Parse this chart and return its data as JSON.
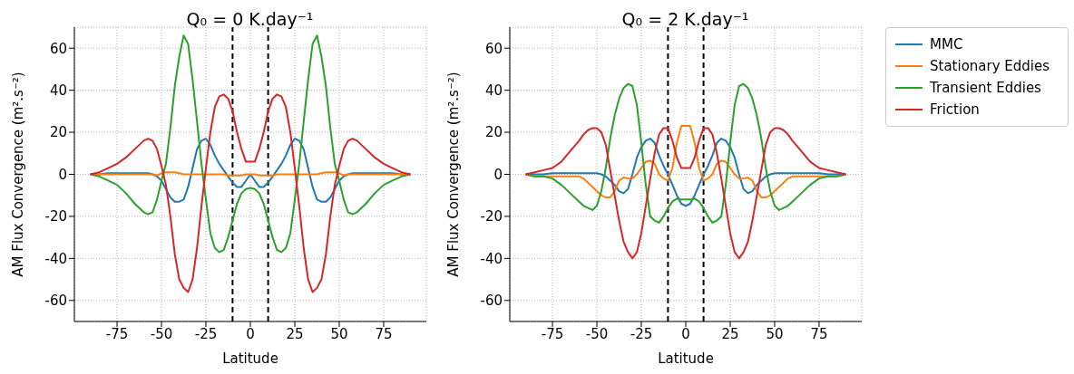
{
  "chart_data": [
    {
      "type": "line",
      "title": "Q₀ = 0 K.day⁻¹",
      "xlabel": "Latitude",
      "ylabel": "AM Flux Convergence (m².s⁻²)",
      "x": [
        -90,
        -85,
        -80,
        -75,
        -70,
        -65,
        -60,
        -57.5,
        -55,
        -52.5,
        -50,
        -47.5,
        -45,
        -42.5,
        -40,
        -37.5,
        -35,
        -32.5,
        -30,
        -27.5,
        -25,
        -22.5,
        -20,
        -17.5,
        -15,
        -12.5,
        -10,
        -7.5,
        -5,
        -2.5,
        0,
        2.5,
        5,
        7.5,
        10,
        12.5,
        15,
        17.5,
        20,
        22.5,
        25,
        27.5,
        30,
        32.5,
        35,
        37.5,
        40,
        42.5,
        45,
        47.5,
        50,
        52.5,
        55,
        57.5,
        60,
        65,
        70,
        75,
        80,
        85,
        90
      ],
      "series": [
        {
          "color": "#1f77b4",
          "values": [
            0,
            0,
            0.5,
            0.5,
            0.5,
            0.5,
            0.5,
            0.5,
            0,
            -1,
            -3,
            -7,
            -11,
            -13,
            -13,
            -12,
            -6,
            3,
            12,
            16,
            17,
            14,
            9,
            5,
            2,
            -1,
            -4,
            -6,
            -6,
            -3,
            0,
            -3,
            -6,
            -6,
            -4,
            -1,
            2,
            5,
            9,
            14,
            17,
            16,
            12,
            3,
            -6,
            -12,
            -13,
            -13,
            -11,
            -7,
            -3,
            -1,
            0,
            0.5,
            0.5,
            0.5,
            0.5,
            0.5,
            0.5,
            0,
            0
          ]
        },
        {
          "color": "#ff7f0e",
          "values": [
            0,
            0,
            0,
            0,
            0,
            0,
            0,
            0,
            0,
            -0.5,
            0.5,
            1,
            1,
            1,
            0.5,
            0,
            0,
            0,
            0,
            0,
            0,
            0,
            0,
            0,
            0,
            -0.5,
            -0.5,
            -0.5,
            -0.5,
            0,
            0,
            0,
            -0.5,
            -0.5,
            -0.5,
            -0.5,
            0,
            0,
            0,
            0,
            0,
            0,
            0,
            0,
            0,
            0,
            0.5,
            1,
            1,
            1,
            0.5,
            -0.5,
            0,
            0,
            0,
            0,
            0,
            0,
            0,
            0,
            0
          ]
        },
        {
          "color": "#2ca02c",
          "values": [
            0,
            -1,
            -3,
            -5,
            -9,
            -14,
            -18,
            -19,
            -18,
            -12,
            -3,
            5,
            22,
            42,
            56,
            66,
            62,
            45,
            25,
            5,
            -12,
            -28,
            -35,
            -37,
            -36,
            -30,
            -22,
            -14,
            -9,
            -7,
            -6.5,
            -7,
            -9,
            -14,
            -22,
            -30,
            -36,
            -37,
            -35,
            -28,
            -12,
            5,
            25,
            45,
            62,
            66,
            56,
            42,
            22,
            5,
            -3,
            -12,
            -18,
            -19,
            -18,
            -14,
            -9,
            -5,
            -3,
            -1,
            0
          ]
        },
        {
          "color": "#d62728",
          "values": [
            0,
            1,
            3,
            5,
            8,
            12,
            16,
            17,
            16,
            12,
            4,
            -5,
            -20,
            -38,
            -50,
            -54,
            -56,
            -50,
            -35,
            -15,
            3,
            20,
            32,
            37,
            38,
            36,
            30,
            20,
            12,
            6,
            6,
            6,
            12,
            20,
            30,
            36,
            38,
            37,
            32,
            20,
            3,
            -15,
            -35,
            -50,
            -56,
            -54,
            -50,
            -38,
            -20,
            -5,
            4,
            12,
            16,
            17,
            16,
            12,
            8,
            5,
            3,
            1,
            0
          ]
        }
      ],
      "xlim": [
        -99,
        99
      ],
      "xticks": [
        -75,
        -50,
        -25,
        0,
        25,
        50,
        75
      ],
      "ylim": [
        -70,
        70
      ],
      "yticks": [
        -60,
        -40,
        -20,
        0,
        20,
        40,
        60
      ],
      "grid": true,
      "marker": "none",
      "line_style": "solid",
      "ref_lines": [
        {
          "axis": "x",
          "value": -10,
          "color": "#000000",
          "line_style": "dashed"
        },
        {
          "axis": "x",
          "value": 10,
          "color": "#000000",
          "line_style": "dashed"
        }
      ]
    },
    {
      "type": "line",
      "title": "Q₀ = 2 K.day⁻¹",
      "xlabel": "Latitude",
      "ylabel": "AM Flux Convergence (m².s⁻²)",
      "x": [
        -90,
        -85,
        -80,
        -75,
        -70,
        -65,
        -60,
        -57.5,
        -55,
        -52.5,
        -50,
        -47.5,
        -45,
        -42.5,
        -40,
        -37.5,
        -35,
        -32.5,
        -30,
        -27.5,
        -25,
        -22.5,
        -20,
        -17.5,
        -15,
        -12.5,
        -10,
        -7.5,
        -5,
        -2.5,
        0,
        2.5,
        5,
        7.5,
        10,
        12.5,
        15,
        17.5,
        20,
        22.5,
        25,
        27.5,
        30,
        32.5,
        35,
        37.5,
        40,
        42.5,
        45,
        47.5,
        50,
        52.5,
        55,
        57.5,
        60,
        65,
        70,
        75,
        80,
        85,
        90
      ],
      "series": [
        {
          "name": "MMC",
          "color": "#1f77b4",
          "values": [
            0,
            0,
            0,
            0.5,
            0.5,
            0.5,
            0.5,
            0.5,
            0.5,
            0.5,
            0.5,
            0,
            -1,
            -3,
            -5,
            -8,
            -9,
            -7,
            0,
            8,
            13,
            16,
            17,
            15,
            9,
            4,
            0,
            -5,
            -10,
            -14,
            -15,
            -14,
            -10,
            -5,
            0,
            4,
            9,
            15,
            17,
            16,
            13,
            8,
            0,
            -7,
            -9,
            -8,
            -5,
            -3,
            -1,
            0,
            0.5,
            0.5,
            0.5,
            0.5,
            0.5,
            0.5,
            0.5,
            0.5,
            0,
            0,
            0
          ]
        },
        {
          "name": "Stationary Eddies",
          "color": "#ff7f0e",
          "values": [
            0,
            -1,
            -1,
            -1,
            -1,
            -1,
            -1,
            -2,
            -4,
            -6,
            -8,
            -10,
            -11,
            -11,
            -8,
            -3,
            -1.5,
            -2,
            -2,
            0,
            3,
            6,
            6.5,
            5,
            0,
            -2,
            -3,
            3,
            15,
            23,
            23,
            23,
            15,
            3,
            -3,
            -2,
            0,
            5,
            6.5,
            6,
            3,
            0,
            -2,
            -2,
            -1.5,
            -3,
            -8,
            -11,
            -11,
            -10,
            -8,
            -6,
            -4,
            -2,
            -1,
            -1,
            -1,
            -1,
            -1,
            -1,
            0
          ]
        },
        {
          "name": "Transient Eddies",
          "color": "#2ca02c",
          "values": [
            0,
            -1,
            -1,
            -2,
            -5,
            -9,
            -13,
            -15,
            -16,
            -17,
            -15,
            -8,
            3,
            17,
            28,
            36,
            41,
            43,
            42,
            33,
            15,
            -5,
            -20,
            -22,
            -23,
            -20,
            -16,
            -13,
            -11.5,
            -12,
            -12,
            -12,
            -11.5,
            -13,
            -16,
            -20,
            -23,
            -22,
            -20,
            -5,
            15,
            33,
            42,
            43,
            41,
            36,
            28,
            17,
            3,
            -8,
            -15,
            -17,
            -16,
            -15,
            -13,
            -9,
            -5,
            -2,
            -1,
            -1,
            0
          ]
        },
        {
          "name": "Friction",
          "color": "#d62728",
          "values": [
            0,
            1,
            2,
            3,
            6,
            11,
            16,
            19,
            21,
            22,
            22,
            20,
            14,
            2,
            -10,
            -22,
            -32,
            -37,
            -40,
            -37,
            -28,
            -15,
            -2,
            10,
            19,
            22,
            22,
            16,
            8,
            3,
            3,
            3,
            8,
            16,
            22,
            22,
            19,
            10,
            -2,
            -15,
            -28,
            -37,
            -40,
            -37,
            -32,
            -22,
            -10,
            2,
            14,
            20,
            22,
            22,
            21,
            19,
            16,
            11,
            6,
            3,
            2,
            1,
            0
          ]
        }
      ],
      "xlim": [
        -99,
        99
      ],
      "xticks": [
        -75,
        -50,
        -25,
        0,
        25,
        50,
        75
      ],
      "ylim": [
        -70,
        70
      ],
      "yticks": [
        -60,
        -40,
        -20,
        0,
        20,
        40,
        60
      ],
      "grid": true,
      "legend": "right",
      "marker": "none",
      "line_style": "solid",
      "ref_lines": [
        {
          "axis": "x",
          "value": -10,
          "color": "#000000",
          "line_style": "dashed"
        },
        {
          "axis": "x",
          "value": 10,
          "color": "#000000",
          "line_style": "dashed"
        }
      ]
    }
  ]
}
